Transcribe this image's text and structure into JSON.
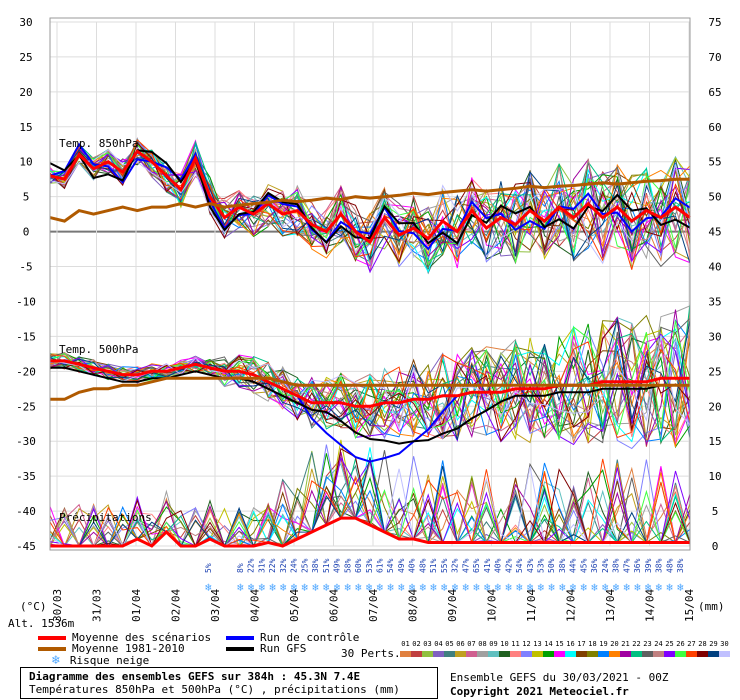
{
  "chart_data": {
    "type": "line",
    "title": "Diagramme des ensembles GEFS sur 384h : 45.3N 7.4E",
    "subtitle": "Températures 850hPa et 500hPa (°C) , précipitations (mm)",
    "yleft_unit": "(°C)",
    "yright_unit": "(mm)",
    "ylim": [
      -45,
      30
    ],
    "yright_lim": [
      0,
      75
    ],
    "yleft_ticks": [
      "30",
      "25",
      "20",
      "15",
      "10",
      "5",
      "0",
      "-5",
      "-10",
      "-15",
      "-20",
      "-25",
      "-30",
      "-35",
      "-40",
      "-45"
    ],
    "yright_ticks": [
      "75",
      "70",
      "65",
      "60",
      "55",
      "50",
      "45",
      "40",
      "35",
      "30",
      "25",
      "20",
      "15",
      "10",
      "5",
      "0"
    ],
    "x_labels": [
      "30/03",
      "31/03",
      "01/04",
      "02/04",
      "03/04",
      "04/04",
      "05/04",
      "06/04",
      "07/04",
      "08/04",
      "09/04",
      "10/04",
      "11/04",
      "12/04",
      "13/04",
      "14/04",
      "15/04"
    ],
    "panel_labels": [
      "Temp. 850hPa",
      "Temp. 500hPa",
      "Précipitations"
    ],
    "altitude": "Alt. 1536m",
    "snow_risk_pct": [
      "5%",
      "8%",
      "22%",
      "31%",
      "22%",
      "32%",
      "24%",
      "25%",
      "38%",
      "51%",
      "49%",
      "58%",
      "60%",
      "53%",
      "61%",
      "54%",
      "49%",
      "40%",
      "48%",
      "51%",
      "55%",
      "32%",
      "47%",
      "65%",
      "41%",
      "40%",
      "42%",
      "54%",
      "43%",
      "53%",
      "50%",
      "38%",
      "44%",
      "45%",
      "36%",
      "24%",
      "38%",
      "47%",
      "36%",
      "39%",
      "38%",
      "48%",
      "38%"
    ],
    "series": [
      {
        "name": "Moyenne des scénarios (850hPa)",
        "color": "#ff0000",
        "values": [
          8,
          7.5,
          11,
          9,
          10,
          8.5,
          11.5,
          10,
          8,
          6,
          10.5,
          5,
          2,
          3.5,
          2.5,
          4,
          2.5,
          3,
          1,
          0,
          2.5,
          0,
          -1.5,
          2,
          -0.5,
          0.5,
          -1,
          1.5,
          0,
          3,
          0.5,
          2,
          1,
          3,
          1.5,
          3.5,
          2,
          4,
          2,
          3.5,
          1.5,
          3,
          2,
          3.5,
          2
        ]
      },
      {
        "name": "Moyenne 1981-2010 (850hPa)",
        "color": "#b05a00",
        "values": [
          2,
          1.5,
          3,
          2.5,
          3,
          3.5,
          3,
          3.5,
          3.5,
          4,
          3.5,
          4,
          3.5,
          3.8,
          4,
          4.2,
          4.5,
          4.3,
          4.5,
          4.8,
          4.6,
          5,
          4.8,
          5,
          5.2,
          5.5,
          5.3,
          5.6,
          5.8,
          6,
          5.8,
          6,
          6.2,
          6.5,
          6.3,
          6.5,
          6.6,
          6.8,
          7,
          6.8,
          7,
          7.2,
          7.3,
          7.5,
          7.5
        ]
      },
      {
        "name": "Moyenne des scénarios (500hPa)",
        "color": "#ff0000",
        "values": [
          -18.5,
          -18.5,
          -19,
          -19.5,
          -20,
          -20.5,
          -20.5,
          -20,
          -20,
          -19.5,
          -19,
          -19.5,
          -20,
          -20,
          -20.5,
          -21.5,
          -22.5,
          -23.5,
          -24.5,
          -24.5,
          -24.5,
          -25,
          -25,
          -24.5,
          -24.5,
          -24,
          -24,
          -23.5,
          -23.5,
          -23,
          -23,
          -23,
          -22.5,
          -22.5,
          -22.5,
          -22,
          -22,
          -22,
          -21.5,
          -21.5,
          -21.5,
          -21.5,
          -21,
          -21,
          -21
        ]
      },
      {
        "name": "Moyenne 1981-2010 (500hPa)",
        "color": "#b05a00",
        "values": [
          -24,
          -24,
          -23,
          -22.5,
          -22.5,
          -22,
          -22,
          -21.5,
          -21,
          -21,
          -21,
          -21,
          -21,
          -21,
          -21,
          -21,
          -21.5,
          -22,
          -22,
          -22,
          -22,
          -22,
          -22,
          -22,
          -22,
          -22,
          -22,
          -22,
          -22,
          -22,
          -22,
          -22,
          -22,
          -22,
          -22,
          -22,
          -22,
          -22,
          -22,
          -22,
          -22,
          -22,
          -22,
          -22,
          -22
        ]
      },
      {
        "name": "Moyenne des scénarios (précipitations)",
        "color": "#ff0000",
        "values": [
          0,
          0,
          0,
          0,
          0,
          0,
          1,
          0,
          2,
          0,
          0,
          1,
          0,
          0,
          0,
          0.5,
          0,
          1,
          2,
          3,
          4,
          4,
          3,
          2,
          1,
          1,
          0.5,
          0.5,
          0.5,
          0.5,
          0.5,
          0.5,
          0.5,
          0.5,
          0.5,
          0.5,
          0.5,
          0.5,
          0.5,
          0.5,
          0.5,
          0.5,
          0.5,
          0.5,
          0.5
        ]
      }
    ],
    "legend": [
      {
        "label": "Moyenne des scénarios",
        "color": "#ff0000"
      },
      {
        "label": "Moyenne 1981-2010",
        "color": "#b05a00"
      },
      {
        "label": "Run de contrôle",
        "color": "#0000ff"
      },
      {
        "label": "Run GFS",
        "color": "#000000"
      },
      {
        "label": "Risque neige",
        "color": "#4da6ff"
      }
    ]
  },
  "perts": {
    "label": "30 Perts.",
    "numbers": [
      "01",
      "02",
      "03",
      "04",
      "05",
      "06",
      "07",
      "08",
      "09",
      "10",
      "11",
      "12",
      "13",
      "14",
      "15",
      "16",
      "17",
      "18",
      "19",
      "20",
      "21",
      "22",
      "23",
      "24",
      "25",
      "26",
      "27",
      "28",
      "29",
      "30"
    ],
    "colors": [
      "#e08040",
      "#c04040",
      "#90c040",
      "#8060c0",
      "#408080",
      "#c0a020",
      "#d06090",
      "#a0a0a0",
      "#60c0c0",
      "#206020",
      "#ff8080",
      "#8080ff",
      "#c0c000",
      "#00a000",
      "#ff00ff",
      "#00ffff",
      "#804000",
      "#808000",
      "#0080ff",
      "#ff8000",
      "#a000a0",
      "#00c080",
      "#606060",
      "#c08080",
      "#8000ff",
      "#40ff40",
      "#ff4000",
      "#800000",
      "#004080",
      "#c0c0ff"
    ]
  },
  "footer": {
    "title": "Diagramme des ensembles GEFS sur 384h : 45.3N 7.4E",
    "subtitle": "Températures 850hPa et 500hPa (°C) , précipitations (mm)",
    "run": "Ensemble GEFS du 30/03/2021 - 00Z",
    "copyright": "Copyright 2021 Meteociel.fr"
  }
}
